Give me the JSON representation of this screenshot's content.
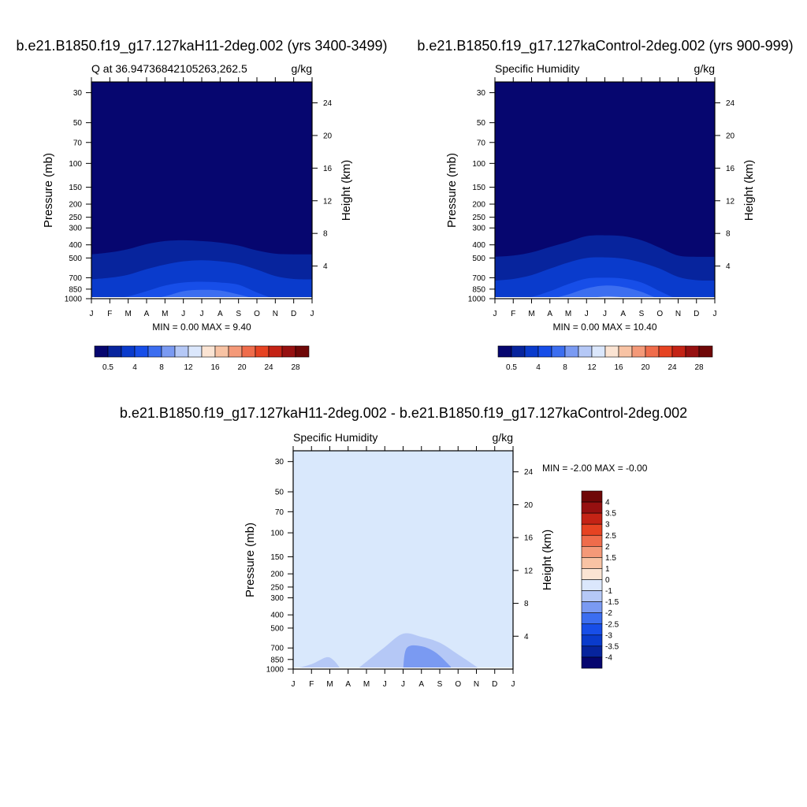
{
  "figure": {
    "title_top_left": "b.e21.B1850.f19_g17.127kaH11-2deg.002 (yrs 3400-3499)",
    "title_top_right": "b.e21.B1850.f19_g17.127kaControl-2deg.002 (yrs 900-999)",
    "title_bottom": "b.e21.B1850.f19_g17.127kaH11-2deg.002 - b.e21.B1850.f19_g17.127kaControl-2deg.002"
  },
  "chart_data": [
    {
      "type": "contour",
      "id": "left",
      "subtitle_left": "Q at 36.94736842105263,262.5",
      "subtitle_right": "g/kg",
      "xlabel": "",
      "ylabel": "Pressure (mb)",
      "ylabel_right": "Height (km)",
      "x_ticks": [
        "J",
        "F",
        "M",
        "A",
        "M",
        "J",
        "J",
        "A",
        "S",
        "O",
        "N",
        "D",
        "J"
      ],
      "y_ticks": [
        30,
        50,
        70,
        100,
        150,
        200,
        250,
        300,
        400,
        500,
        700,
        850,
        1000
      ],
      "y_ticks_right": [
        24,
        20,
        16,
        12,
        8,
        4
      ],
      "ylim": [
        1000,
        25
      ],
      "stats": "MIN =   0.00 MAX =   9.40",
      "min": 0.0,
      "max": 9.4,
      "levels": [
        0.5,
        2,
        4,
        6,
        8,
        10,
        12,
        14,
        16,
        18,
        20,
        22,
        24,
        26,
        28
      ],
      "colorbar_labels": [
        "0.5",
        "4",
        "8",
        "12",
        "16",
        "20",
        "24",
        "28"
      ],
      "contour_tops_mb": [
        [
          470,
          455,
          430,
          395,
          375,
          370,
          375,
          385,
          405,
          440,
          465,
          470,
          470
        ],
        [
          720,
          700,
          665,
          605,
          560,
          530,
          520,
          530,
          555,
          610,
          680,
          715,
          720
        ],
        [
          1000,
          1000,
          960,
          880,
          800,
          760,
          750,
          760,
          790,
          900,
          1000,
          1000,
          1000
        ],
        [
          1000,
          1000,
          1000,
          1000,
          960,
          880,
          860,
          870,
          930,
          1000,
          1000,
          1000,
          1000
        ]
      ]
    },
    {
      "type": "contour",
      "id": "right",
      "subtitle_left": "Specific Humidity",
      "subtitle_right": "g/kg",
      "xlabel": "",
      "ylabel": "Pressure (mb)",
      "ylabel_right": "Height (km)",
      "x_ticks": [
        "J",
        "F",
        "M",
        "A",
        "M",
        "J",
        "J",
        "A",
        "S",
        "O",
        "N",
        "D",
        "J"
      ],
      "y_ticks": [
        30,
        50,
        70,
        100,
        150,
        200,
        250,
        300,
        400,
        500,
        700,
        850,
        1000
      ],
      "y_ticks_right": [
        24,
        20,
        16,
        12,
        8,
        4
      ],
      "ylim": [
        1000,
        25
      ],
      "stats": "MIN =   0.00 MAX =  10.40",
      "min": 0.0,
      "max": 10.4,
      "levels": [
        0.5,
        2,
        4,
        6,
        8,
        10,
        12,
        14,
        16,
        18,
        20,
        22,
        24,
        26,
        28
      ],
      "colorbar_labels": [
        "0.5",
        "4",
        "8",
        "12",
        "16",
        "20",
        "24",
        "28"
      ],
      "contour_tops_mb": [
        [
          490,
          480,
          455,
          415,
          380,
          345,
          340,
          345,
          370,
          420,
          480,
          490,
          490
        ],
        [
          735,
          715,
          670,
          600,
          540,
          500,
          495,
          505,
          540,
          600,
          690,
          730,
          735
        ],
        [
          1000,
          1000,
          970,
          880,
          780,
          710,
          700,
          710,
          760,
          880,
          1000,
          1000,
          1000
        ],
        [
          1000,
          1000,
          1000,
          1000,
          930,
          840,
          800,
          820,
          890,
          1000,
          1000,
          1000,
          1000
        ],
        [
          1000,
          1000,
          1000,
          1000,
          1000,
          1000,
          960,
          975,
          1000,
          1000,
          1000,
          1000,
          1000
        ]
      ]
    },
    {
      "type": "contour",
      "id": "diff",
      "subtitle_left": "Specific Humidity",
      "subtitle_right": "g/kg",
      "xlabel": "",
      "ylabel": "Pressure (mb)",
      "ylabel_right": "Height (km)",
      "x_ticks": [
        "J",
        "F",
        "M",
        "A",
        "M",
        "J",
        "J",
        "A",
        "S",
        "O",
        "N",
        "D",
        "J"
      ],
      "y_ticks": [
        30,
        50,
        70,
        100,
        150,
        200,
        250,
        300,
        400,
        500,
        700,
        850,
        1000
      ],
      "y_ticks_right": [
        24,
        20,
        16,
        12,
        8,
        4
      ],
      "ylim": [
        1000,
        25
      ],
      "stats": "MIN =  -2.00 MAX =  -0.00",
      "min": -2.0,
      "max": -0.0,
      "levels": [
        -4,
        -3.5,
        -3,
        -2.5,
        -2,
        -1.5,
        -1,
        0,
        1,
        1.5,
        2,
        2.5,
        3,
        3.5,
        4
      ],
      "colorbar_labels": [
        "4",
        "3.5",
        "3",
        "2.5",
        "2",
        "1.5",
        "1",
        "0",
        "-1",
        "-1.5",
        "-2",
        "-2.5",
        "-3",
        "-3.5",
        "-4"
      ],
      "regions": [
        {
          "level": "-1 to 0",
          "x_months": [
            0,
            1,
            1.8,
            2.2,
            2.6
          ],
          "top_mb": [
            1000,
            920,
            820,
            860,
            1000
          ]
        },
        {
          "level": "-1 to 0",
          "x_months": [
            3.5,
            4.2,
            5,
            6,
            7,
            8,
            9,
            10.2
          ],
          "top_mb": [
            1000,
            840,
            690,
            550,
            580,
            640,
            780,
            1000
          ]
        },
        {
          "level": "-1.5 to -1",
          "x_months": [
            6,
            6.2,
            7,
            7.8,
            8.6
          ],
          "top_mb": [
            1000,
            700,
            680,
            760,
            960
          ]
        }
      ]
    }
  ],
  "colors": {
    "palette": [
      "#06066f",
      "#07249d",
      "#0a3bcc",
      "#174ee8",
      "#3c6ef0",
      "#7a9af2",
      "#b5c8f6",
      "#dbe7fc",
      "#fbe4d3",
      "#f8c3a4",
      "#f49978",
      "#ef6c4b",
      "#e64322",
      "#c42315",
      "#961010",
      "#6f0707"
    ],
    "diff_background": "#d9e8fc",
    "diff_fill_1": "#b5c8f6",
    "diff_fill_2": "#7a9af2"
  }
}
